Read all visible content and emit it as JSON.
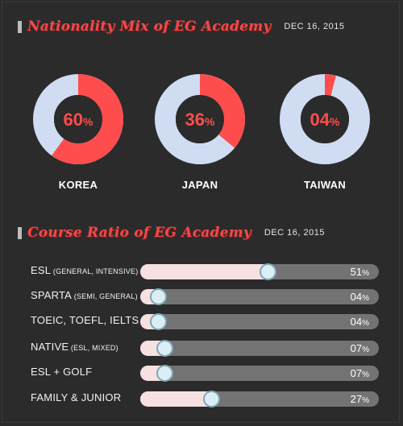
{
  "sections": {
    "nationality": {
      "title": "Nationality Mix of EG Academy",
      "date": "DEC 16, 2015"
    },
    "course": {
      "title": "Course Ratio of EG Academy",
      "date": "DEC 16, 2015"
    }
  },
  "colors": {
    "accent": "#ff4d4d",
    "ring": "#cfdcf2",
    "track": "#737373",
    "fill": "#f7e0e0",
    "knob": "#dbeef5"
  },
  "chart_data": [
    {
      "type": "pie",
      "title": "Nationality Mix of EG Academy",
      "categories": [
        "KOREA",
        "JAPAN",
        "TAIWAN"
      ],
      "values": [
        60,
        36,
        4
      ],
      "labels": [
        "60",
        "36",
        "04"
      ],
      "unit": "%"
    },
    {
      "type": "bar",
      "title": "Course Ratio of EG Academy",
      "categories": [
        "ESL",
        "SPARTA",
        "TOEIC, TOEFL, IELTS",
        "NATIVE",
        "ESL + GOLF",
        "FAMILY & JUNIOR"
      ],
      "subtitles": [
        "(GENERAL, INTENSIVE)",
        "(SEMI, GENERAL)",
        "",
        "(ESL, MIXED)",
        "",
        ""
      ],
      "values": [
        51,
        4,
        4,
        7,
        7,
        27
      ],
      "labels": [
        "51",
        "04",
        "04",
        "07",
        "07",
        "27"
      ],
      "unit": "%",
      "ylim": [
        0,
        100
      ]
    }
  ]
}
